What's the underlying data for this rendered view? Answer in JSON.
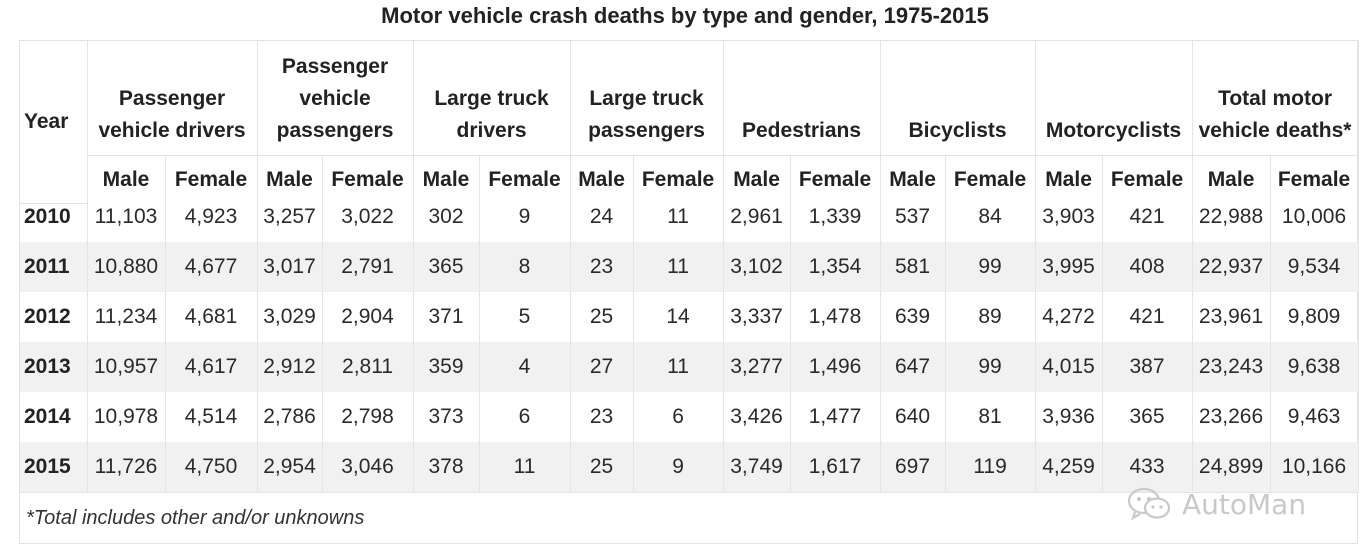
{
  "title": "Motor vehicle crash deaths by type and gender, 1975-2015",
  "header": {
    "year_label": "Year",
    "groups": [
      {
        "name": "Passenger vehicle drivers"
      },
      {
        "name": "Passenger vehicle passengers"
      },
      {
        "name": "Large truck drivers"
      },
      {
        "name": "Large truck passengers"
      },
      {
        "name": "Pedestrians"
      },
      {
        "name": "Bicyclists"
      },
      {
        "name": "Motorcyclists"
      },
      {
        "name": "Total motor vehicle deaths*"
      }
    ],
    "male_label": "Male",
    "female_label": "Female"
  },
  "rows": [
    {
      "year": "2010",
      "values": [
        "11,103",
        "4,923",
        "3,257",
        "3,022",
        "302",
        "9",
        "24",
        "11",
        "2,961",
        "1,339",
        "537",
        "84",
        "3,903",
        "421",
        "22,988",
        "10,006"
      ]
    },
    {
      "year": "2011",
      "values": [
        "10,880",
        "4,677",
        "3,017",
        "2,791",
        "365",
        "8",
        "23",
        "11",
        "3,102",
        "1,354",
        "581",
        "99",
        "3,995",
        "408",
        "22,937",
        "9,534"
      ]
    },
    {
      "year": "2012",
      "values": [
        "11,234",
        "4,681",
        "3,029",
        "2,904",
        "371",
        "5",
        "25",
        "14",
        "3,337",
        "1,478",
        "639",
        "89",
        "4,272",
        "421",
        "23,961",
        "9,809"
      ]
    },
    {
      "year": "2013",
      "values": [
        "10,957",
        "4,617",
        "2,912",
        "2,811",
        "359",
        "4",
        "27",
        "11",
        "3,277",
        "1,496",
        "647",
        "99",
        "4,015",
        "387",
        "23,243",
        "9,638"
      ]
    },
    {
      "year": "2014",
      "values": [
        "10,978",
        "4,514",
        "2,786",
        "2,798",
        "373",
        "6",
        "23",
        "6",
        "3,426",
        "1,477",
        "640",
        "81",
        "3,936",
        "365",
        "23,266",
        "9,463"
      ]
    },
    {
      "year": "2015",
      "values": [
        "11,726",
        "4,750",
        "2,954",
        "3,046",
        "378",
        "11",
        "25",
        "9",
        "3,749",
        "1,617",
        "697",
        "119",
        "4,259",
        "433",
        "24,899",
        "10,166"
      ]
    }
  ],
  "footnote": "*Total includes other and/or unknowns",
  "watermark": {
    "text": "AutoMan",
    "icon": "wechat-icon"
  }
}
